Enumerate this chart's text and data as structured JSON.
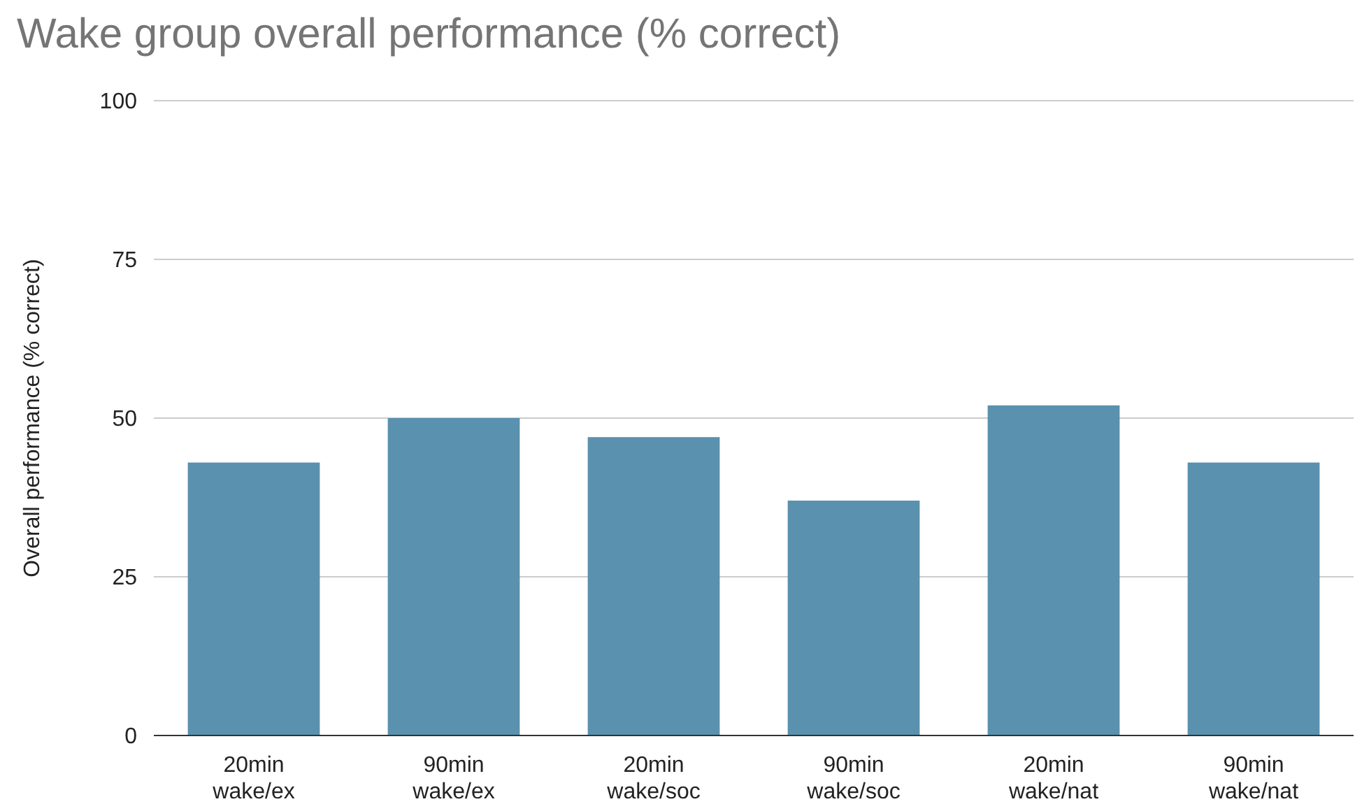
{
  "chart_data": {
    "type": "bar",
    "title": "Wake group overall performance (% correct)",
    "ylabel": "Overall performance (% correct)",
    "categories": [
      "20min wake/ex",
      "90min wake/ex",
      "20min wake/soc",
      "90min wake/soc",
      "20min wake/nat",
      "90min wake/nat"
    ],
    "values": [
      43,
      50,
      47,
      37,
      52,
      43
    ],
    "color": "#5a91ae",
    "ylim": [
      0,
      100
    ],
    "yticks": [
      0,
      25,
      50,
      75,
      100
    ],
    "grid": "y"
  }
}
